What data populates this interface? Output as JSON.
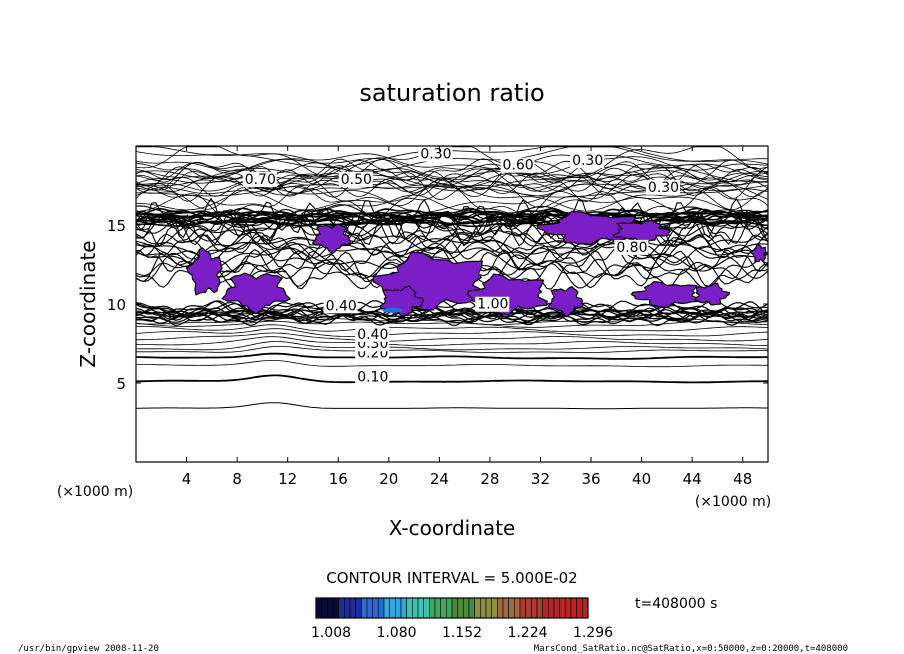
{
  "chart_data": {
    "type": "contour",
    "title": "saturation ratio",
    "xlabel": "X-coordinate",
    "ylabel": "Z-coordinate",
    "x_unit": "(×1000 m)",
    "y_unit": "(×1000 m)",
    "xlim": [
      0,
      50
    ],
    "ylim": [
      0,
      20
    ],
    "x_ticks": [
      "4",
      "8",
      "12",
      "16",
      "20",
      "24",
      "28",
      "32",
      "36",
      "40",
      "44",
      "48"
    ],
    "y_ticks": [
      "5",
      "10",
      "15"
    ],
    "contour_interval": "CONTOUR INTERVAL = 5.000E-02",
    "contour_labels": [
      {
        "text": "0.10",
        "x": 17.5,
        "y": 5.1
      },
      {
        "text": "0.20",
        "x": 17.5,
        "y": 6.6
      },
      {
        "text": "0.30",
        "x": 17.5,
        "y": 7.2
      },
      {
        "text": "0.40",
        "x": 17.5,
        "y": 7.8
      },
      {
        "text": "0.40",
        "x": 15.0,
        "y": 9.6
      },
      {
        "text": "0.30",
        "x": 22.5,
        "y": 19.2
      },
      {
        "text": "0.70",
        "x": 8.6,
        "y": 17.6
      },
      {
        "text": "0.50",
        "x": 16.2,
        "y": 17.6
      },
      {
        "text": "0.60",
        "x": 29.0,
        "y": 18.5
      },
      {
        "text": "0.30",
        "x": 34.5,
        "y": 18.8
      },
      {
        "text": "0.30",
        "x": 40.5,
        "y": 17.1
      },
      {
        "text": "0.80",
        "x": 38.0,
        "y": 13.3
      },
      {
        "text": "1.00",
        "x": 27.0,
        "y": 9.7
      }
    ],
    "colorbar": {
      "ticks": [
        "1.008",
        "1.080",
        "1.152",
        "1.224",
        "1.296"
      ],
      "colors": [
        "#0a0a3a",
        "#1c2c9a",
        "#2a6ad8",
        "#39a6d8",
        "#3cc6b0",
        "#3ea860",
        "#4c8a3a",
        "#8a9040",
        "#a06a3c",
        "#a84030",
        "#b02828",
        "#c02020"
      ]
    },
    "supersaturated_fill_color": "#7a1fc8",
    "time_label": "t=408000 s"
  },
  "footer": {
    "left": "/usr/bin/gpview  2008-11-20",
    "right": "MarsCond_SatRatio.nc@SatRatio,x=0:50000,z=0:20000,t=408000"
  }
}
